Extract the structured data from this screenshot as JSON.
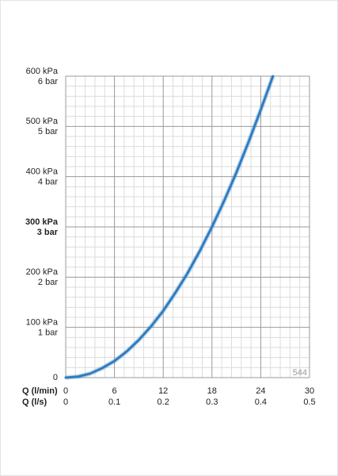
{
  "chart_data": {
    "type": "line",
    "x": [
      0,
      1.5,
      3,
      4.5,
      6,
      7.5,
      9,
      10.5,
      12,
      13.5,
      15,
      16.5,
      18,
      19.5,
      21,
      22.5,
      24,
      25.5
    ],
    "series": [
      {
        "color": "#2e7cc0",
        "values": [
          0,
          2,
          8,
          19,
          33,
          52,
          75,
          102,
          133,
          169,
          208,
          252,
          300,
          352,
          408,
          469,
          533,
          600
        ]
      }
    ],
    "xlabel": "Q (l/min)",
    "x2label": "Q (l/s)",
    "xlim": [
      0,
      30
    ],
    "xticks": [
      0,
      6,
      12,
      18,
      24,
      30
    ],
    "x2lim": [
      0,
      0.5
    ],
    "x2ticks": [
      0,
      0.1,
      0.2,
      0.3,
      0.4,
      0.5
    ],
    "ylim": [
      0,
      600
    ],
    "yticks": [
      0,
      {
        "value": 100,
        "label": "100 kPa"
      },
      {
        "value": 200,
        "label": "200 kPa"
      },
      {
        "value": 300,
        "label": "300 kPa",
        "bold": true
      },
      {
        "value": 400,
        "label": "400 kPa"
      },
      {
        "value": 500,
        "label": "500 kPa"
      },
      {
        "value": 600,
        "label": "600 kPa"
      }
    ],
    "y2lim": [
      0,
      6
    ],
    "y2ticks": [
      {
        "value": 1,
        "label": "1 bar"
      },
      {
        "value": 2,
        "label": "2 bar"
      },
      {
        "value": 3,
        "label": "3 bar",
        "bold": true
      },
      {
        "value": 4,
        "label": "4 bar"
      },
      {
        "value": 5,
        "label": "5 bar"
      },
      {
        "value": 6,
        "label": "6 bar"
      }
    ],
    "grid": true,
    "minor_grid": 5,
    "annotation": "544"
  }
}
